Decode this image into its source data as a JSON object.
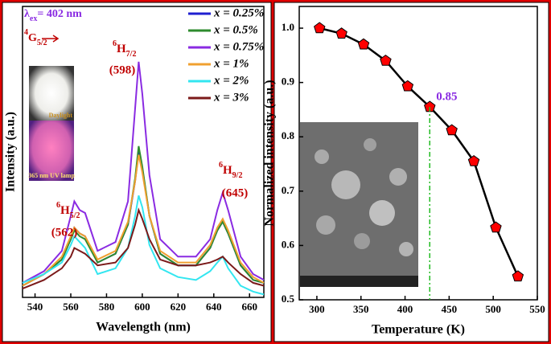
{
  "chart_data": [
    {
      "type": "line",
      "x_label": "Wavelength (nm)",
      "y_label": "Intensity (a.u.)",
      "xlim": [
        533,
        668
      ],
      "ylim": [
        0,
        100
      ],
      "xticks": [
        540,
        560,
        580,
        600,
        620,
        640,
        660
      ],
      "x": [
        533,
        545,
        555,
        560,
        562,
        565,
        568,
        575,
        585,
        592,
        596,
        598,
        600,
        604,
        610,
        620,
        630,
        638,
        642,
        645,
        648,
        655,
        662,
        668
      ],
      "series": [
        {
          "name": "x = 0.25%",
          "color": "#1f1fd0",
          "values": [
            4,
            8,
            13,
            20,
            24,
            22,
            21,
            12,
            15,
            25,
            40,
            50,
            44,
            28,
            15,
            11,
            11,
            17,
            23,
            26,
            22,
            11,
            6,
            5
          ]
        },
        {
          "name": "x = 0.5%",
          "color": "#2e8b2e",
          "values": [
            4,
            8,
            13,
            20,
            23,
            21,
            20,
            12,
            15,
            25,
            41,
            52,
            45,
            28,
            15,
            11,
            11,
            17,
            23,
            26,
            22,
            11,
            6,
            5
          ]
        },
        {
          "name": "x = 0.75%",
          "color": "#8a2be2",
          "values": [
            5,
            9,
            16,
            28,
            33,
            30,
            29,
            16,
            19,
            33,
            65,
            81,
            70,
            42,
            20,
            14,
            14,
            20,
            30,
            36,
            30,
            14,
            8,
            6
          ]
        },
        {
          "name": "x = 1%",
          "color": "#f0a030",
          "values": [
            4,
            8,
            14,
            21,
            24,
            22,
            21,
            13,
            16,
            26,
            40,
            49,
            43,
            28,
            16,
            12,
            12,
            18,
            24,
            27,
            23,
            12,
            7,
            5
          ]
        },
        {
          "name": "x = 2%",
          "color": "#33e6f0",
          "values": [
            5,
            8,
            12,
            18,
            21,
            19,
            17,
            8,
            10,
            17,
            28,
            35,
            31,
            18,
            10,
            7,
            6,
            9,
            12,
            14,
            10,
            4,
            2,
            1
          ]
        },
        {
          "name": "x = 3%",
          "color": "#7b1a1a",
          "values": [
            3,
            6,
            10,
            14,
            17,
            16,
            15,
            11,
            12,
            17,
            25,
            30,
            27,
            20,
            13,
            11,
            11,
            12,
            13,
            14,
            12,
            8,
            5,
            4
          ]
        }
      ],
      "excitation": {
        "symbol": "λ",
        "sub": "ex",
        "text": "= 402 nm"
      },
      "level": {
        "sup": "4",
        "main": "G",
        "sub": "5/2"
      },
      "peaks": [
        {
          "sup": "6",
          "main": "H",
          "sub": "5/2",
          "label": "(562)"
        },
        {
          "sup": "6",
          "main": "H",
          "sub": "7/2",
          "label": "(598)"
        },
        {
          "sup": "6",
          "main": "H",
          "sub": "9/2",
          "label": "(645)"
        }
      ],
      "inset_labels": [
        "Daylight",
        "365 nm UV lamp"
      ]
    },
    {
      "type": "line",
      "x_label": "Temperature (K)",
      "y_label": "Normalized intensity (a.u.)",
      "xlim": [
        280,
        550
      ],
      "ylim": [
        0.5,
        1.04
      ],
      "xticks": [
        300,
        350,
        400,
        450,
        500,
        550
      ],
      "yticks": [
        {
          "value": 0.5,
          "label": "0.5"
        },
        0.6,
        0.7,
        0.8,
        0.9,
        {
          "value": 1.0,
          "label": "1.0"
        }
      ],
      "x": [
        303,
        328,
        353,
        378,
        403,
        428,
        453,
        478,
        503,
        528
      ],
      "series": [
        {
          "color": "#ff0000",
          "values": [
            1.0,
            0.99,
            0.97,
            0.94,
            0.893,
            0.855,
            0.812,
            0.755,
            0.633,
            0.543
          ]
        }
      ],
      "annotation": "0.85"
    }
  ]
}
